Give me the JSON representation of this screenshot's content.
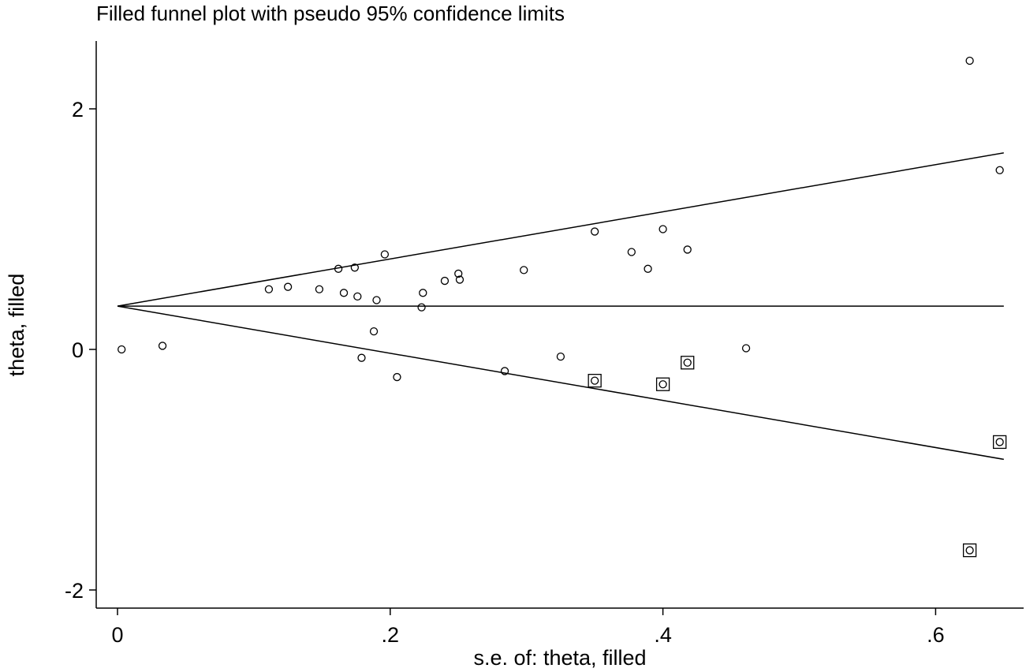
{
  "chart_data": {
    "type": "scatter",
    "title": "Filled funnel plot with pseudo 95% confidence limits",
    "xlabel": "s.e. of: theta, filled",
    "ylabel": "theta, filled",
    "xlim": [
      -0.04,
      0.66
    ],
    "ylim": [
      -2.2,
      2.55
    ],
    "x_ticks": [
      {
        "value": 0,
        "label": "0"
      },
      {
        "value": 0.2,
        "label": ".2"
      },
      {
        "value": 0.4,
        "label": ".4"
      },
      {
        "value": 0.6,
        "label": ".6"
      }
    ],
    "y_ticks": [
      {
        "value": -2,
        "label": "-2"
      },
      {
        "value": 0,
        "label": "0"
      },
      {
        "value": 2,
        "label": "2"
      }
    ],
    "grid": false,
    "pooled_estimate": 0.36,
    "ci_multiplier": 1.96,
    "ci_se_max": 0.65,
    "series": [
      {
        "marker": "circle",
        "points": [
          {
            "x": 0.003,
            "y": 0.0
          },
          {
            "x": 0.033,
            "y": 0.03
          },
          {
            "x": 0.111,
            "y": 0.5
          },
          {
            "x": 0.125,
            "y": 0.52
          },
          {
            "x": 0.148,
            "y": 0.5
          },
          {
            "x": 0.162,
            "y": 0.67
          },
          {
            "x": 0.166,
            "y": 0.47
          },
          {
            "x": 0.174,
            "y": 0.68
          },
          {
            "x": 0.176,
            "y": 0.44
          },
          {
            "x": 0.179,
            "y": -0.07
          },
          {
            "x": 0.188,
            "y": 0.15
          },
          {
            "x": 0.19,
            "y": 0.41
          },
          {
            "x": 0.196,
            "y": 0.79
          },
          {
            "x": 0.205,
            "y": -0.23
          },
          {
            "x": 0.223,
            "y": 0.35
          },
          {
            "x": 0.224,
            "y": 0.47
          },
          {
            "x": 0.24,
            "y": 0.57
          },
          {
            "x": 0.25,
            "y": 0.63
          },
          {
            "x": 0.251,
            "y": 0.58
          },
          {
            "x": 0.284,
            "y": -0.18
          },
          {
            "x": 0.298,
            "y": 0.66
          },
          {
            "x": 0.325,
            "y": -0.06
          },
          {
            "x": 0.35,
            "y": 0.98
          },
          {
            "x": 0.377,
            "y": 0.81
          },
          {
            "x": 0.389,
            "y": 0.67
          },
          {
            "x": 0.4,
            "y": 1.0
          },
          {
            "x": 0.418,
            "y": 0.83
          },
          {
            "x": 0.461,
            "y": 0.01
          },
          {
            "x": 0.625,
            "y": 2.4
          },
          {
            "x": 0.647,
            "y": 1.49
          }
        ]
      },
      {
        "marker": "circle-in-square",
        "points": [
          {
            "x": 0.35,
            "y": -0.26
          },
          {
            "x": 0.4,
            "y": -0.29
          },
          {
            "x": 0.418,
            "y": -0.11
          },
          {
            "x": 0.625,
            "y": -1.67
          },
          {
            "x": 0.647,
            "y": -0.77
          }
        ]
      }
    ]
  }
}
